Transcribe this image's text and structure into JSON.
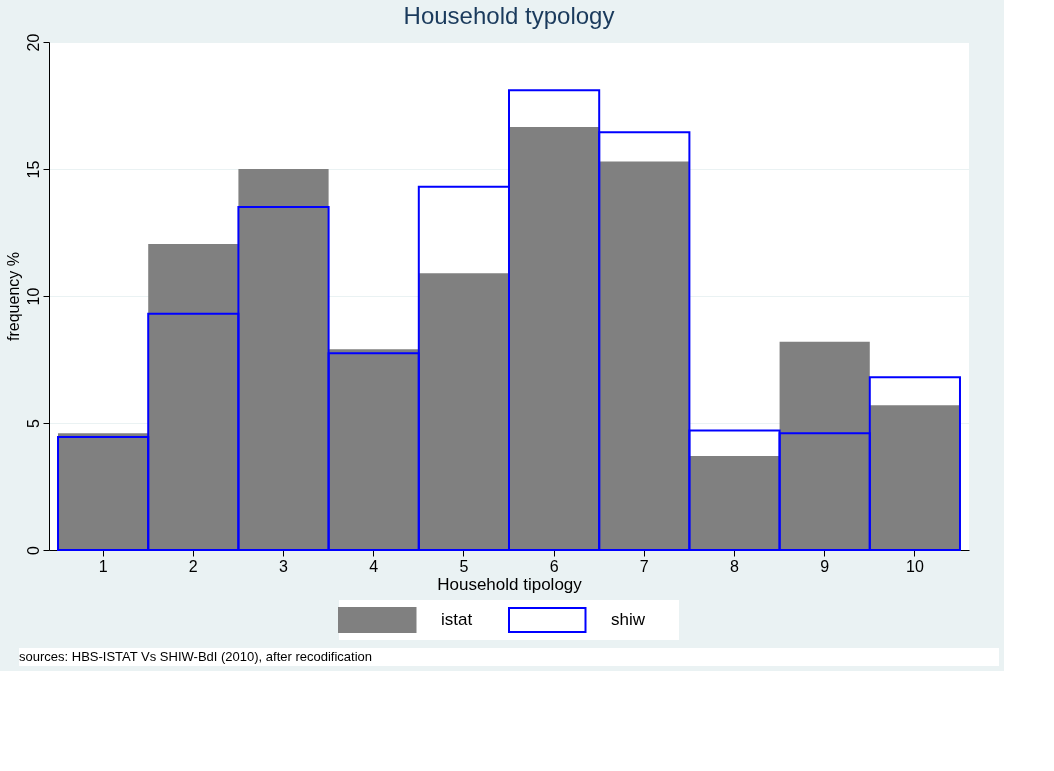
{
  "chart_data": {
    "type": "bar",
    "title": "Household typology",
    "xlabel": "Household tipology",
    "ylabel": "frequency %",
    "categories": [
      "1",
      "2",
      "3",
      "4",
      "5",
      "6",
      "7",
      "8",
      "9",
      "10"
    ],
    "series": [
      {
        "name": "istat",
        "color": "#808080",
        "values": [
          4.6,
          12.05,
          15.0,
          7.9,
          10.9,
          16.65,
          15.3,
          3.7,
          8.2,
          5.7
        ]
      },
      {
        "name": "shiw",
        "color": "#0000ff",
        "values": [
          4.45,
          9.3,
          13.5,
          7.75,
          14.3,
          18.1,
          16.45,
          4.7,
          4.6,
          6.8
        ]
      }
    ],
    "ylim": [
      0,
      20
    ],
    "yticks": [
      0,
      5,
      10,
      15,
      20
    ],
    "grid": "y",
    "legend": "bottom",
    "annotations": [
      "sources: HBS-ISTAT Vs SHIW-BdI (2010), after recodification"
    ]
  }
}
